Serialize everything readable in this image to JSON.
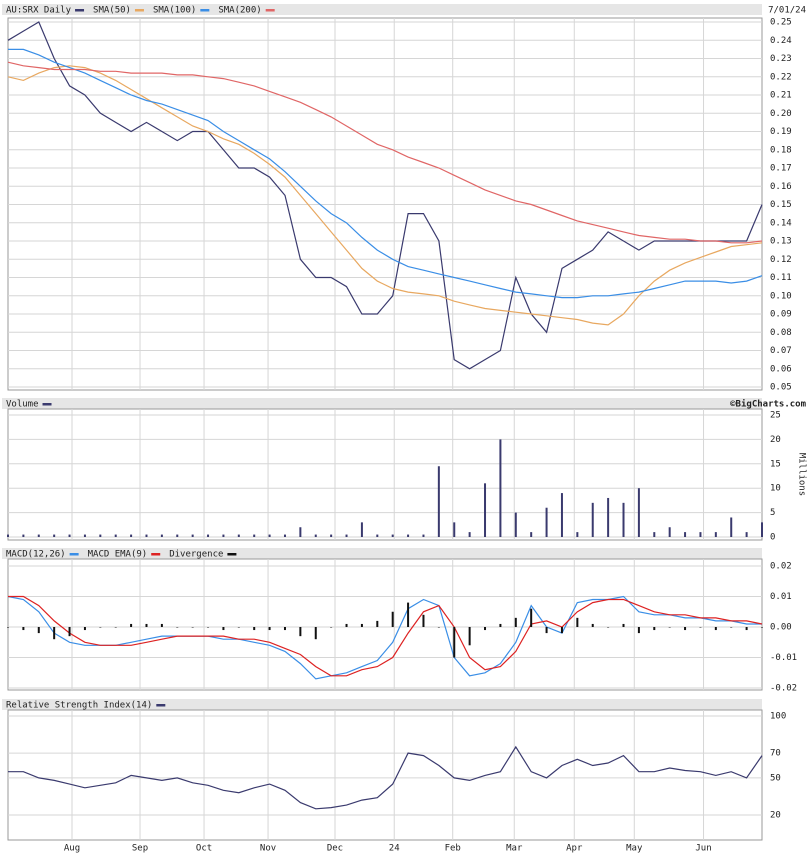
{
  "chart_data": [
    {
      "type": "line",
      "title": "AU:SRX Daily",
      "annotations": [
        "7/01/24"
      ],
      "ylim": [
        0.05,
        0.25
      ],
      "yticks": [
        0.05,
        0.06,
        0.07,
        0.08,
        0.09,
        {
          "value": 0.1,
          "label": "0.10"
        },
        0.11,
        0.12,
        0.13,
        0.14,
        0.15,
        0.16,
        0.17,
        0.18,
        0.19,
        {
          "value": 0.2,
          "label": "0.20"
        },
        0.21,
        0.22,
        0.23,
        0.24,
        0.25
      ],
      "series": [
        {
          "name": "AU:SRX Daily",
          "color": "#3a3a6e",
          "values": [
            0.24,
            0.245,
            0.25,
            0.23,
            0.215,
            0.21,
            0.2,
            0.195,
            0.19,
            0.195,
            0.19,
            0.185,
            0.19,
            0.19,
            0.18,
            0.17,
            0.17,
            0.165,
            0.155,
            0.12,
            0.11,
            0.11,
            0.105,
            0.09,
            0.09,
            0.1,
            0.145,
            0.145,
            0.13,
            0.065,
            0.06,
            0.065,
            0.07,
            0.11,
            0.09,
            0.08,
            0.115,
            0.12,
            0.125,
            0.135,
            0.13,
            0.125,
            0.13,
            0.13,
            0.13,
            0.13,
            0.13,
            0.13,
            0.13,
            0.15
          ]
        },
        {
          "name": "SMA(50)",
          "color": "#e8a860",
          "values": [
            0.22,
            0.218,
            0.222,
            0.225,
            0.226,
            0.225,
            0.222,
            0.218,
            0.213,
            0.208,
            0.203,
            0.198,
            0.193,
            0.19,
            0.186,
            0.183,
            0.178,
            0.172,
            0.165,
            0.155,
            0.145,
            0.135,
            0.125,
            0.115,
            0.108,
            0.104,
            0.102,
            0.101,
            0.1,
            0.097,
            0.095,
            0.093,
            0.092,
            0.091,
            0.09,
            0.089,
            0.088,
            0.087,
            0.085,
            0.084,
            0.09,
            0.1,
            0.108,
            0.114,
            0.118,
            0.121,
            0.124,
            0.127,
            0.128,
            0.129
          ]
        },
        {
          "name": "SMA(100)",
          "color": "#3a8ee6",
          "values": [
            0.235,
            0.235,
            0.232,
            0.228,
            0.225,
            0.222,
            0.218,
            0.214,
            0.21,
            0.207,
            0.205,
            0.202,
            0.199,
            0.196,
            0.19,
            0.185,
            0.18,
            0.175,
            0.168,
            0.16,
            0.152,
            0.145,
            0.14,
            0.132,
            0.125,
            0.12,
            0.116,
            0.114,
            0.112,
            0.11,
            0.108,
            0.106,
            0.104,
            0.102,
            0.101,
            0.1,
            0.099,
            0.099,
            0.1,
            0.1,
            0.101,
            0.102,
            0.104,
            0.106,
            0.108,
            0.108,
            0.108,
            0.107,
            0.108,
            0.111
          ]
        },
        {
          "name": "SMA(200)",
          "color": "#e06666",
          "values": [
            0.228,
            0.226,
            0.225,
            0.224,
            0.224,
            0.224,
            0.223,
            0.223,
            0.222,
            0.222,
            0.222,
            0.221,
            0.221,
            0.22,
            0.219,
            0.217,
            0.215,
            0.212,
            0.209,
            0.206,
            0.202,
            0.198,
            0.193,
            0.188,
            0.183,
            0.18,
            0.176,
            0.173,
            0.17,
            0.166,
            0.162,
            0.158,
            0.155,
            0.152,
            0.15,
            0.147,
            0.144,
            0.141,
            0.139,
            0.137,
            0.135,
            0.133,
            0.132,
            0.131,
            0.131,
            0.13,
            0.13,
            0.129,
            0.129,
            0.13
          ]
        }
      ]
    },
    {
      "type": "bar",
      "title": "Volume",
      "annotations": [
        "©BigCharts.com"
      ],
      "ylabel": "Millions",
      "ylim": [
        0,
        25
      ],
      "yticks": [
        0,
        5,
        10,
        15,
        20,
        25
      ],
      "series": [
        {
          "name": "Volume",
          "color": "#3a3a6e",
          "values": [
            0.5,
            0.5,
            0.5,
            0.5,
            0.5,
            0.5,
            0.5,
            0.5,
            0.5,
            0.5,
            0.5,
            0.5,
            0.5,
            0.5,
            0.5,
            0.5,
            0.5,
            0.5,
            0.5,
            2,
            0.5,
            0.5,
            0.5,
            3,
            0.5,
            0.5,
            0.5,
            0.5,
            14.5,
            3,
            1,
            11,
            20,
            5,
            1,
            6,
            9,
            1,
            7,
            8,
            7,
            10,
            1,
            2,
            1,
            1,
            1,
            4,
            1,
            3
          ]
        }
      ]
    },
    {
      "type": "line",
      "ylim": [
        -0.02,
        0.02
      ],
      "yticks": [
        0.02,
        0.01,
        {
          "value": 0,
          "label": "0.00"
        },
        -0.01,
        -0.02
      ],
      "series": [
        {
          "name": "MACD(12,26)",
          "color": "#3a8ee6",
          "values": [
            0.01,
            0.009,
            0.005,
            -0.002,
            -0.005,
            -0.006,
            -0.006,
            -0.006,
            -0.005,
            -0.004,
            -0.003,
            -0.003,
            -0.003,
            -0.003,
            -0.004,
            -0.004,
            -0.005,
            -0.006,
            -0.008,
            -0.012,
            -0.017,
            -0.016,
            -0.015,
            -0.013,
            -0.011,
            -0.005,
            0.006,
            0.009,
            0.007,
            -0.01,
            -0.016,
            -0.015,
            -0.012,
            -0.005,
            0.007,
            0,
            -0.002,
            0.008,
            0.009,
            0.009,
            0.01,
            0.005,
            0.004,
            0.004,
            0.003,
            0.003,
            0.002,
            0.002,
            0.001,
            0.001
          ]
        },
        {
          "name": "MACD EMA(9)",
          "color": "#dd2222",
          "values": [
            0.01,
            0.01,
            0.007,
            0.002,
            -0.002,
            -0.005,
            -0.006,
            -0.006,
            -0.006,
            -0.005,
            -0.004,
            -0.003,
            -0.003,
            -0.003,
            -0.003,
            -0.004,
            -0.004,
            -0.005,
            -0.007,
            -0.009,
            -0.013,
            -0.016,
            -0.016,
            -0.014,
            -0.013,
            -0.01,
            -0.002,
            0.005,
            0.007,
            0,
            -0.01,
            -0.014,
            -0.013,
            -0.008,
            0.001,
            0.002,
            0,
            0.005,
            0.008,
            0.009,
            0.009,
            0.007,
            0.005,
            0.004,
            0.004,
            0.003,
            0.003,
            0.002,
            0.002,
            0.001
          ]
        },
        {
          "name": "Divergence",
          "color": "#111111",
          "type": "bar",
          "values": [
            0,
            -0.001,
            -0.002,
            -0.004,
            -0.003,
            -0.001,
            0,
            0,
            0.001,
            0.001,
            0.001,
            0,
            0,
            0,
            -0.001,
            0,
            -0.001,
            -0.001,
            -0.001,
            -0.003,
            -0.004,
            0,
            0.001,
            0.001,
            0.002,
            0.005,
            0.008,
            0.004,
            0,
            -0.01,
            -0.006,
            -0.001,
            0.001,
            0.003,
            0.006,
            -0.002,
            -0.002,
            0.003,
            0.001,
            0,
            0.001,
            -0.002,
            -0.001,
            0,
            -0.001,
            0,
            -0.001,
            0,
            -0.001,
            0
          ]
        }
      ]
    },
    {
      "type": "line",
      "ylim": [
        0,
        100
      ],
      "yticks": [
        20,
        50,
        70,
        100
      ],
      "xticks": [
        {
          "value": 4.16,
          "label": "Aug"
        },
        {
          "value": 8.58,
          "label": "Sep"
        },
        {
          "value": 12.74,
          "label": "Oct"
        },
        {
          "value": 16.9,
          "label": "Nov"
        },
        {
          "value": 21.25,
          "label": "Dec"
        },
        {
          "value": 25.1,
          "label": "24"
        },
        {
          "value": 28.9,
          "label": "Feb"
        },
        {
          "value": 32.9,
          "label": "Mar"
        },
        {
          "value": 36.8,
          "label": "Apr"
        },
        {
          "value": 40.7,
          "label": "May"
        },
        {
          "value": 45.2,
          "label": "Jun"
        }
      ],
      "series": [
        {
          "name": "Relative Strength Index(14)",
          "color": "#3a3a6e",
          "values": [
            55,
            55,
            50,
            48,
            45,
            42,
            44,
            46,
            52,
            50,
            48,
            50,
            46,
            44,
            40,
            38,
            42,
            45,
            40,
            30,
            25,
            26,
            28,
            32,
            34,
            45,
            70,
            68,
            60,
            50,
            48,
            52,
            55,
            75,
            55,
            50,
            60,
            65,
            60,
            62,
            68,
            55,
            55,
            58,
            56,
            55,
            52,
            55,
            50,
            68
          ]
        }
      ]
    }
  ]
}
